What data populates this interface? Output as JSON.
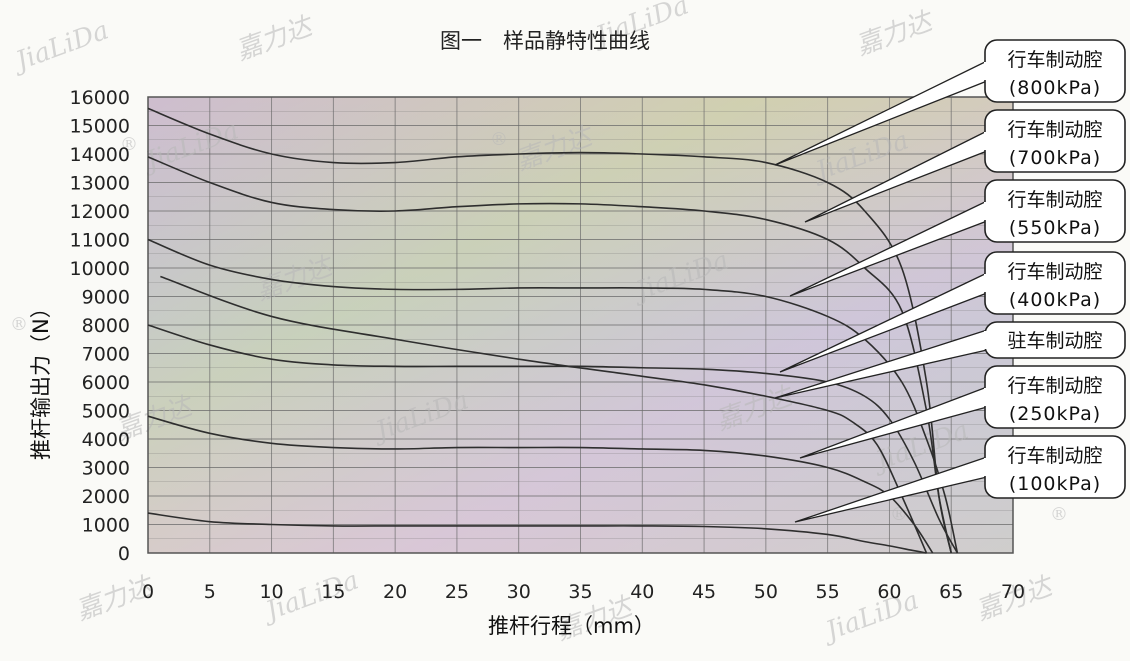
{
  "chart_data": {
    "type": "line",
    "title": "图一　样品静特性曲线",
    "xlabel": "推杆行程（mm）",
    "ylabel": "推杆输出力（N）",
    "xlim": [
      0,
      70
    ],
    "ylim": [
      0,
      16000
    ],
    "x_ticks": [
      "0",
      "5",
      "10",
      "15",
      "20",
      "25",
      "30",
      "35",
      "40",
      "45",
      "50",
      "55",
      "60",
      "65",
      "70"
    ],
    "y_ticks": [
      "0",
      "1000",
      "2000",
      "3000",
      "4000",
      "5000",
      "6000",
      "7000",
      "8000",
      "9000",
      "10000",
      "11000",
      "12000",
      "13000",
      "14000",
      "15000",
      "16000"
    ],
    "grid": true,
    "series": [
      {
        "name": "行车制动腔",
        "sub": "(800kPa)",
        "x": [
          0,
          5,
          10,
          15,
          20,
          25,
          30,
          35,
          40,
          45,
          50,
          55,
          58,
          61,
          63,
          64,
          65
        ],
        "y": [
          15600,
          14700,
          14000,
          13700,
          13700,
          13900,
          14000,
          14050,
          14000,
          13900,
          13700,
          13000,
          12000,
          10000,
          6000,
          2000,
          0
        ]
      },
      {
        "name": "行车制动腔",
        "sub": "(700kPa)",
        "x": [
          0,
          5,
          10,
          15,
          20,
          25,
          30,
          35,
          40,
          45,
          50,
          55,
          58,
          61,
          63,
          64,
          65
        ],
        "y": [
          13900,
          13000,
          12300,
          12050,
          12000,
          12150,
          12250,
          12250,
          12150,
          12000,
          11700,
          11000,
          10000,
          8500,
          5000,
          2000,
          0
        ]
      },
      {
        "name": "行车制动腔",
        "sub": "(550kPa)",
        "x": [
          0,
          5,
          10,
          15,
          20,
          25,
          30,
          35,
          40,
          45,
          50,
          55,
          58,
          61,
          63,
          64.5,
          65.5
        ],
        "y": [
          11000,
          10100,
          9600,
          9350,
          9250,
          9250,
          9300,
          9300,
          9300,
          9250,
          9000,
          8300,
          7500,
          6000,
          4000,
          2000,
          0
        ]
      },
      {
        "name": "行车制动腔",
        "sub": "(400kPa)",
        "x": [
          0,
          5,
          10,
          15,
          20,
          25,
          30,
          35,
          40,
          45,
          50,
          55,
          58,
          60,
          62,
          64,
          65.5
        ],
        "y": [
          8000,
          7300,
          6800,
          6600,
          6550,
          6550,
          6550,
          6550,
          6500,
          6450,
          6300,
          6000,
          5500,
          4700,
          3200,
          1200,
          0
        ]
      },
      {
        "name": "驻车制动腔",
        "sub": "",
        "x": [
          1,
          10,
          20,
          30,
          40,
          45,
          50,
          55,
          57,
          59,
          61,
          63
        ],
        "y": [
          9700,
          8300,
          7500,
          6800,
          6200,
          5900,
          5500,
          5000,
          4600,
          3800,
          2000,
          0
        ]
      },
      {
        "name": "行车制动腔",
        "sub": "(250kPa)",
        "x": [
          0,
          5,
          10,
          15,
          20,
          25,
          30,
          35,
          40,
          45,
          50,
          55,
          58,
          60,
          62,
          63.5
        ],
        "y": [
          4800,
          4200,
          3850,
          3700,
          3650,
          3700,
          3700,
          3700,
          3650,
          3600,
          3400,
          3000,
          2500,
          2000,
          1000,
          0
        ]
      },
      {
        "name": "行车制动腔",
        "sub": "(100kPa)",
        "x": [
          0,
          5,
          10,
          15,
          20,
          25,
          30,
          35,
          40,
          45,
          50,
          55,
          58,
          60,
          62,
          63
        ],
        "y": [
          1400,
          1100,
          1000,
          950,
          950,
          950,
          950,
          950,
          950,
          930,
          850,
          650,
          400,
          250,
          80,
          0
        ]
      }
    ],
    "legend_placement": "right"
  },
  "watermarks": [
    "JiaLiDa",
    "嘉力达",
    "®"
  ],
  "colors": {
    "curve": "#2e2e2e",
    "grid": "#6a6a6a",
    "frame": "#555555",
    "callout_fill": "#ffffff"
  }
}
